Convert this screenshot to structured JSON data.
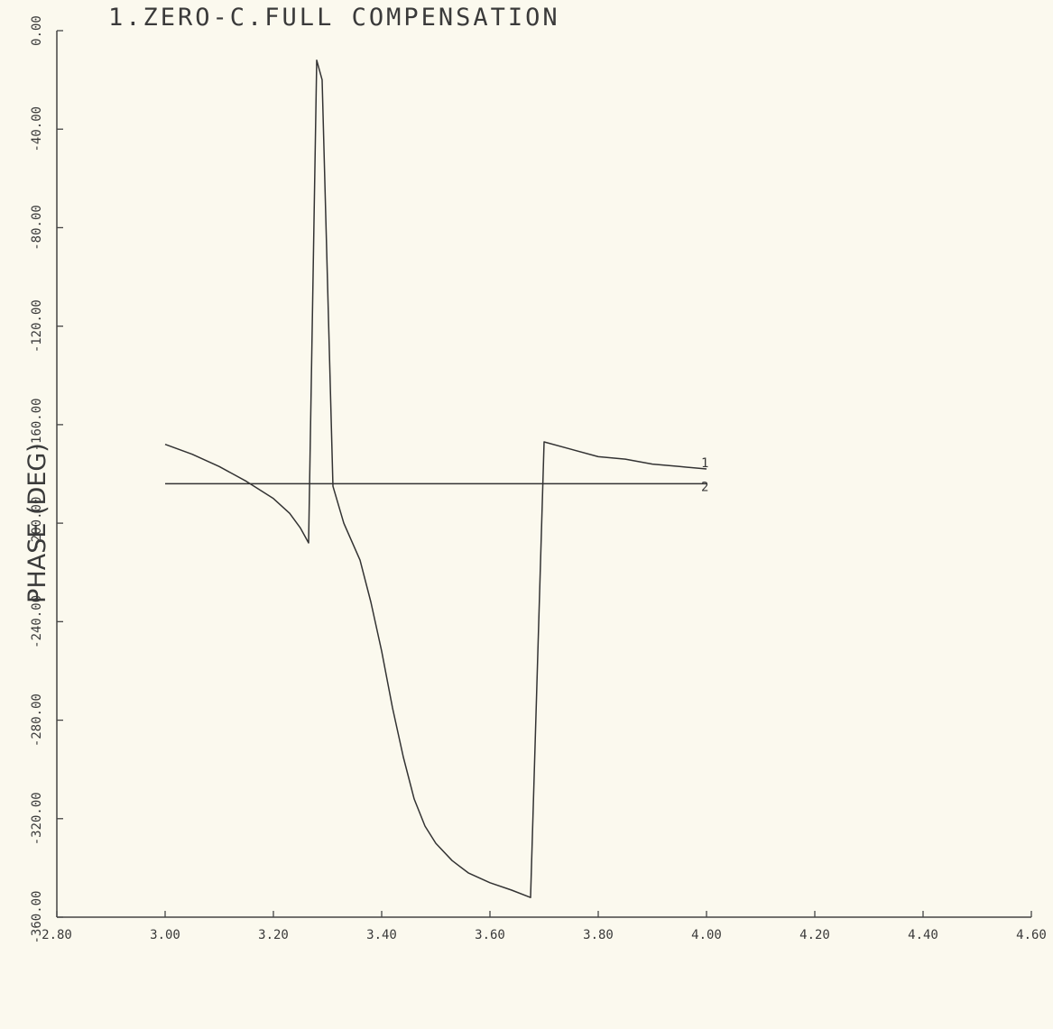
{
  "chart_data": {
    "type": "line",
    "title": "1.ZERO-C.FULL COMPENSATION",
    "xlabel": "",
    "ylabel": "PHASE (DEG)",
    "xlim": [
      2.8,
      4.6
    ],
    "ylim": [
      -360.0,
      0.0
    ],
    "x_ticks": [
      "2.80",
      "3.00",
      "3.20",
      "3.40",
      "3.60",
      "3.80",
      "4.00",
      "4.20",
      "4.40",
      "4.60"
    ],
    "y_ticks": [
      "0.00",
      "-40.00",
      "-80.00",
      "-120.00",
      "-160.00",
      "-200.00",
      "-240.00",
      "-280.00",
      "-320.00",
      "-360.00"
    ],
    "grid": false,
    "series": [
      {
        "name": "1",
        "x": [
          3.0,
          3.05,
          3.1,
          3.15,
          3.2,
          3.23,
          3.25,
          3.265,
          3.265,
          3.28,
          3.29,
          3.31,
          3.31,
          3.33,
          3.36,
          3.38,
          3.4,
          3.42,
          3.44,
          3.46,
          3.48,
          3.5,
          3.53,
          3.56,
          3.6,
          3.64,
          3.675,
          3.675,
          3.7,
          3.75,
          3.8,
          3.85,
          3.9,
          3.95,
          4.0
        ],
        "y": [
          -168,
          -172,
          -177,
          -183,
          -190,
          -196,
          -202,
          -208,
          -208,
          -12,
          -20,
          -185,
          -185,
          -200,
          -215,
          -232,
          -252,
          -275,
          -295,
          -312,
          -323,
          -330,
          -337,
          -342,
          -346,
          -349,
          -352,
          -352,
          -167,
          -170,
          -173,
          -174,
          -176,
          -177,
          -178
        ]
      },
      {
        "name": "2",
        "x": [
          3.0,
          4.0
        ],
        "y": [
          -184,
          -184
        ]
      }
    ]
  }
}
